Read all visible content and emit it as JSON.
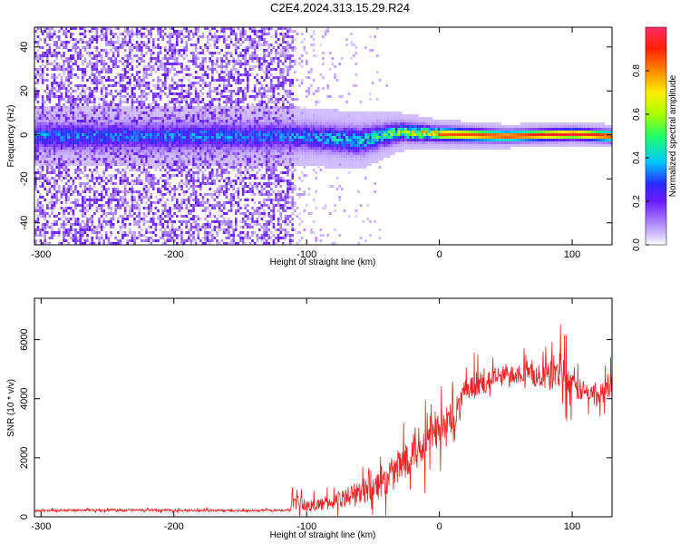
{
  "title": "C2E4.2024.313.15.29.R24",
  "colors": {
    "snr_line": "#ee2222",
    "noise_purple": "#7a1bff",
    "colormap": [
      "#ffffff",
      "#c9b0ff",
      "#7a1bff",
      "#2a2aff",
      "#00c8ff",
      "#22ff66",
      "#aaff00",
      "#ffee00",
      "#ff8800",
      "#ff2200",
      "#ff2a6a"
    ]
  },
  "chart_data": [
    {
      "type": "heatmap",
      "xlabel": "Height of straight line (km)",
      "ylabel": "Frequency (Hz)",
      "xlim": [
        -305,
        130
      ],
      "ylim": [
        -50,
        49
      ],
      "xticks": [
        -300,
        -200,
        -100,
        0,
        100
      ],
      "yticks": [
        -40,
        -20,
        0,
        20,
        40
      ],
      "colorbar": {
        "label": "Normalized spectral amplitude",
        "range": [
          0,
          1
        ],
        "ticks": [
          "0.0",
          "0.2",
          "0.4",
          "0.6",
          "0.8"
        ]
      },
      "signal_band": [
        {
          "x": -110,
          "center_hz": 0,
          "halfwidth_hz": 6,
          "amplitude": 0.3
        },
        {
          "x": -60,
          "center_hz": -2,
          "halfwidth_hz": 6,
          "amplitude": 0.4
        },
        {
          "x": -30,
          "center_hz": 2,
          "halfwidth_hz": 4,
          "amplitude": 0.55
        },
        {
          "x": 0,
          "center_hz": 1,
          "halfwidth_hz": 3,
          "amplitude": 0.8
        },
        {
          "x": 50,
          "center_hz": 0,
          "halfwidth_hz": 2.5,
          "amplitude": 0.85
        },
        {
          "x": 100,
          "center_hz": 1,
          "halfwidth_hz": 2.5,
          "amplitude": 0.9
        },
        {
          "x": 130,
          "center_hz": 0,
          "halfwidth_hz": 2.5,
          "amplitude": 0.85
        }
      ]
    },
    {
      "type": "line",
      "xlabel": "Height of straight line (km)",
      "ylabel": "SNR (10 * v/v)",
      "xlim": [
        -305,
        130
      ],
      "ylim": [
        0,
        7400
      ],
      "xticks": [
        -300,
        -200,
        -100,
        0,
        100
      ],
      "yticks": [
        0,
        2000,
        4000,
        6000
      ],
      "series": [
        {
          "x": [
            -305,
            -280,
            -250,
            -200,
            -150,
            -112,
            -111,
            -100,
            -80,
            -60,
            -40,
            -30,
            -20,
            -10,
            0,
            10,
            20,
            30,
            40,
            50,
            60,
            70,
            80,
            90,
            100,
            110,
            120,
            130
          ],
          "y": [
            200,
            220,
            230,
            220,
            210,
            220,
            700,
            350,
            500,
            850,
            1200,
            1700,
            2300,
            2600,
            2900,
            3400,
            4200,
            4500,
            4700,
            4800,
            4900,
            4800,
            4700,
            5000,
            4400,
            4200,
            4100,
            4400
          ],
          "noise": [
            60,
            60,
            60,
            60,
            60,
            60,
            350,
            300,
            450,
            650,
            900,
            1100,
            1200,
            1100,
            1000,
            900,
            800,
            650,
            600,
            550,
            600,
            600,
            700,
            1200,
            700,
            600,
            600,
            600
          ]
        }
      ]
    }
  ]
}
